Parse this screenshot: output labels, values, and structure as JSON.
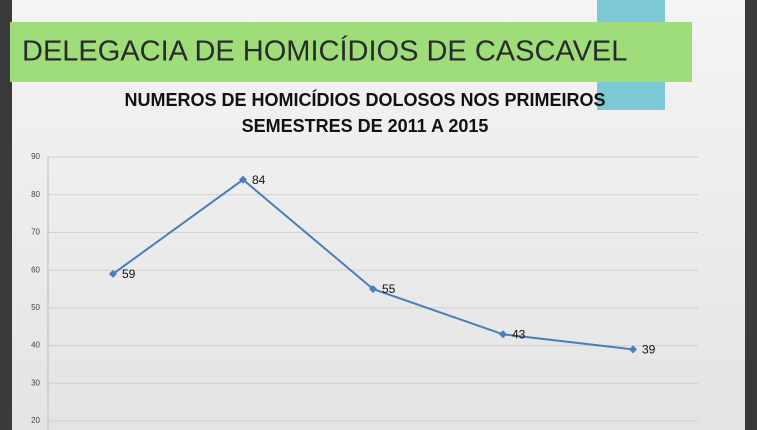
{
  "slide": {
    "title": "DELEGACIA DE HOMICÍDIOS DE CASCAVEL"
  },
  "chart_data": {
    "type": "line",
    "title": [
      "NUMEROS DE HOMICÍDIOS DOLOSOS NOS PRIMEIROS",
      "SEMESTRES DE 2011 A 2015"
    ],
    "categories": [
      null,
      null,
      null,
      null,
      null
    ],
    "values": [
      59,
      84,
      55,
      43,
      39
    ],
    "color": "#4a7ebb",
    "ylim": [
      20,
      90
    ],
    "yticks": [
      20,
      30,
      40,
      50,
      60,
      70,
      80,
      90
    ],
    "grid": true
  }
}
